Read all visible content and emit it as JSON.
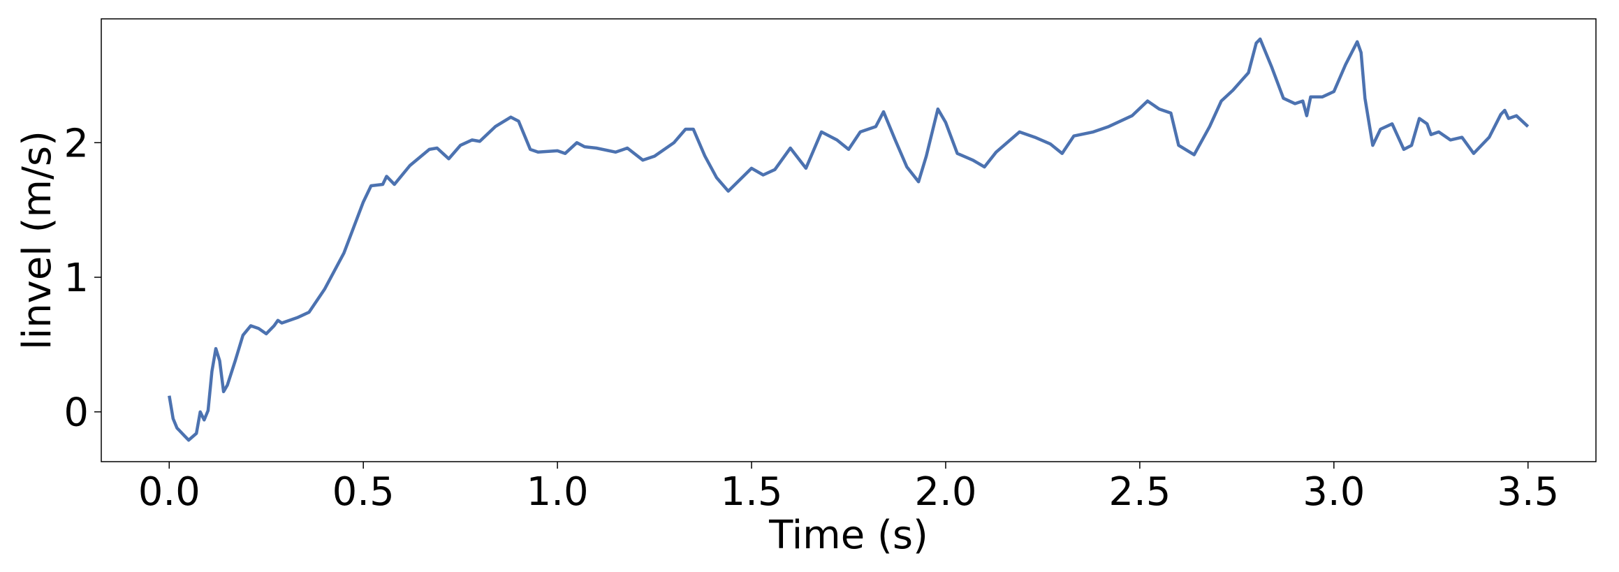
{
  "chart_data": {
    "type": "line",
    "xlabel": "Time (s)",
    "ylabel": "linvel (m/s)",
    "x": [
      0,
      0.01,
      0.02,
      0.04,
      0.05,
      0.07,
      0.08,
      0.09,
      0.1,
      0.11,
      0.12,
      0.13,
      0.14,
      0.15,
      0.17,
      0.19,
      0.21,
      0.23,
      0.25,
      0.27,
      0.28,
      0.29,
      0.33,
      0.36,
      0.4,
      0.45,
      0.5,
      0.52,
      0.55,
      0.56,
      0.58,
      0.62,
      0.67,
      0.69,
      0.72,
      0.75,
      0.78,
      0.8,
      0.84,
      0.88,
      0.9,
      0.93,
      0.95,
      1.0,
      1.02,
      1.05,
      1.07,
      1.1,
      1.15,
      1.18,
      1.22,
      1.25,
      1.3,
      1.33,
      1.35,
      1.38,
      1.41,
      1.44,
      1.5,
      1.53,
      1.56,
      1.6,
      1.64,
      1.68,
      1.72,
      1.75,
      1.78,
      1.82,
      1.84,
      1.87,
      1.9,
      1.93,
      1.95,
      1.98,
      2.0,
      2.03,
      2.07,
      2.1,
      2.13,
      2.19,
      2.23,
      2.27,
      2.3,
      2.33,
      2.38,
      2.42,
      2.48,
      2.52,
      2.55,
      2.58,
      2.6,
      2.64,
      2.68,
      2.71,
      2.74,
      2.78,
      2.8,
      2.81,
      2.84,
      2.87,
      2.9,
      2.92,
      2.93,
      2.94,
      2.97,
      3.0,
      3.03,
      3.06,
      3.07,
      3.08,
      3.1,
      3.12,
      3.15,
      3.18,
      3.2,
      3.22,
      3.24,
      3.25,
      3.27,
      3.3,
      3.33,
      3.36,
      3.4,
      3.43,
      3.44,
      3.45,
      3.47,
      3.5
    ],
    "series": [
      {
        "name": "linvel",
        "color": "#4c72b0",
        "values": [
          0.12,
          -0.05,
          -0.12,
          -0.18,
          -0.21,
          -0.16,
          0,
          -0.06,
          0.01,
          0.3,
          0.47,
          0.38,
          0.15,
          0.2,
          0.38,
          0.57,
          0.64,
          0.62,
          0.58,
          0.64,
          0.68,
          0.66,
          0.7,
          0.74,
          0.91,
          1.18,
          1.56,
          1.68,
          1.69,
          1.75,
          1.69,
          1.83,
          1.95,
          1.96,
          1.88,
          1.98,
          2.02,
          2.01,
          2.12,
          2.19,
          2.16,
          1.95,
          1.93,
          1.94,
          1.92,
          2.0,
          1.97,
          1.96,
          1.93,
          1.96,
          1.87,
          1.9,
          2.0,
          2.1,
          2.1,
          1.9,
          1.74,
          1.64,
          1.81,
          1.76,
          1.8,
          1.96,
          1.81,
          2.08,
          2.02,
          1.95,
          2.08,
          2.12,
          2.23,
          2.02,
          1.82,
          1.71,
          1.9,
          2.25,
          2.15,
          1.92,
          1.87,
          1.82,
          1.93,
          2.08,
          2.04,
          1.99,
          1.92,
          2.05,
          2.08,
          2.12,
          2.2,
          2.31,
          2.25,
          2.22,
          1.98,
          1.91,
          2.12,
          2.31,
          2.39,
          2.52,
          2.74,
          2.77,
          2.56,
          2.33,
          2.29,
          2.31,
          2.2,
          2.34,
          2.34,
          2.38,
          2.58,
          2.75,
          2.67,
          2.33,
          1.98,
          2.1,
          2.14,
          1.95,
          1.98,
          2.18,
          2.14,
          2.06,
          2.08,
          2.02,
          2.04,
          1.92,
          2.04,
          2.21,
          2.24,
          2.18,
          2.2,
          2.12
        ]
      }
    ],
    "xlim": [
      -0.175,
      3.675
    ],
    "ylim": [
      -0.37,
      2.92
    ],
    "xticks": [
      {
        "value": 0,
        "label": "0.0"
      },
      {
        "value": 0.5,
        "label": "0.5"
      },
      {
        "value": 1,
        "label": "1.0"
      },
      {
        "value": 1.5,
        "label": "1.5"
      },
      {
        "value": 2,
        "label": "2.0"
      },
      {
        "value": 2.5,
        "label": "2.5"
      },
      {
        "value": 3,
        "label": "3.0"
      },
      {
        "value": 3.5,
        "label": "3.5"
      }
    ],
    "yticks": [
      0,
      1,
      2
    ],
    "grid": false
  }
}
